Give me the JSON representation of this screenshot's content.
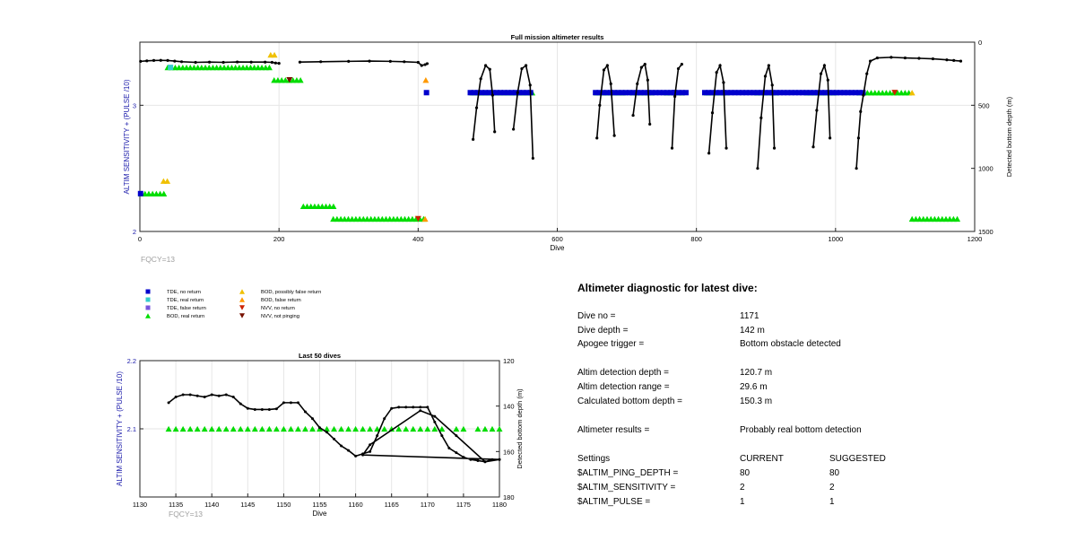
{
  "chart_data": [
    {
      "type": "scatter",
      "title": "Full mission altimeter results",
      "xlabel": "Dive",
      "ylabel_left": "ALTIM SENSITIVITY + (PULSE /10)",
      "ylabel_right": "Detected bottom depth (m)",
      "xlim": [
        0,
        1200
      ],
      "ylim_left": [
        2,
        3.5
      ],
      "ylim_right": [
        0,
        1500
      ],
      "right_axis_reversed": true,
      "x_ticks": [
        "0",
        "200",
        "400",
        "600",
        "800",
        "1000",
        "1200"
      ],
      "y_left_ticks": [
        "2",
        "3"
      ],
      "y_right_ticks": [
        "0",
        "500",
        "1000",
        "1500"
      ],
      "grid": true,
      "annotation": "FQCY=13",
      "legend": [
        {
          "label": "TDE, no return",
          "marker": "square",
          "color": "#0000cc"
        },
        {
          "label": "TDE, real return",
          "marker": "square",
          "color": "#33cccc"
        },
        {
          "label": "TDE, false return",
          "marker": "square",
          "color": "#7755dd"
        },
        {
          "label": "BOD, real return",
          "marker": "triangle-up",
          "color": "#00dd00"
        },
        {
          "label": "BOD, possibly false return",
          "marker": "triangle-up",
          "color": "#f0c000"
        },
        {
          "label": "BOD, false return",
          "marker": "triangle-up",
          "color": "#ff9900"
        },
        {
          "label": "NVV, no return",
          "marker": "triangle-down",
          "color": "#cc2200"
        },
        {
          "label": "NVV, not pinging",
          "marker": "triangle-down",
          "color": "#771100"
        }
      ],
      "status_segments": [
        {
          "series": "BOD, real return",
          "x_start": 40,
          "x_end": 190,
          "y": 3.3
        },
        {
          "series": "BOD, real return",
          "x_start": 193,
          "x_end": 233,
          "y": 3.2
        },
        {
          "series": "BOD, real return",
          "x_start": 478,
          "x_end": 545,
          "y": 3.1
        },
        {
          "series": "BOD, real return",
          "x_start": 537,
          "x_end": 568,
          "y": 3.1
        },
        {
          "series": "BOD, real return",
          "x_start": 657,
          "x_end": 695,
          "y": 3.1
        },
        {
          "series": "BOD, real return",
          "x_start": 708,
          "x_end": 740,
          "y": 3.1
        },
        {
          "series": "BOD, real return",
          "x_start": 757,
          "x_end": 780,
          "y": 3.1
        },
        {
          "series": "BOD, real return",
          "x_start": 815,
          "x_end": 845,
          "y": 3.1
        },
        {
          "series": "BOD, real return",
          "x_start": 887,
          "x_end": 915,
          "y": 3.1
        },
        {
          "series": "BOD, real return",
          "x_start": 960,
          "x_end": 1000,
          "y": 3.1
        },
        {
          "series": "BOD, real return",
          "x_start": 1035,
          "x_end": 1110,
          "y": 3.1
        },
        {
          "series": "BOD, real return",
          "x_start": 2,
          "x_end": 38,
          "y": 2.3
        },
        {
          "series": "BOD, real return",
          "x_start": 235,
          "x_end": 280,
          "y": 2.2
        },
        {
          "series": "BOD, real return",
          "x_start": 278,
          "x_end": 412,
          "y": 2.1
        },
        {
          "series": "BOD, real return",
          "x_start": 1110,
          "x_end": 1180,
          "y": 2.1
        },
        {
          "series": "BOD, possibly false return",
          "x_start": 188,
          "x_end": 196,
          "y": 3.4
        },
        {
          "series": "BOD, possibly false return",
          "x_start": 34,
          "x_end": 40,
          "y": 2.4
        },
        {
          "series": "TDE, no return",
          "x_start": 475,
          "x_end": 565,
          "y": 3.1
        },
        {
          "series": "TDE, no return",
          "x_start": 655,
          "x_end": 790,
          "y": 3.1
        },
        {
          "series": "TDE, no return",
          "x_start": 812,
          "x_end": 1040,
          "y": 3.1
        }
      ],
      "status_points": [
        {
          "series": "TDE, no return",
          "x": 412,
          "y": 3.1
        },
        {
          "series": "TDE, no return",
          "x": 768,
          "y": 3.1
        },
        {
          "series": "TDE, no return",
          "x": 1,
          "y": 2.3
        },
        {
          "series": "TDE, real return",
          "x": 44,
          "y": 3.3
        },
        {
          "series": "BOD, false return",
          "x": 411,
          "y": 3.2
        },
        {
          "series": "BOD, false return",
          "x": 410,
          "y": 2.1
        },
        {
          "series": "BOD, possibly false return",
          "x": 1110,
          "y": 3.1
        },
        {
          "series": "NVV, no return",
          "x": 400,
          "y": 2.1
        },
        {
          "series": "NVV, no return",
          "x": 1085,
          "y": 3.1
        },
        {
          "series": "NVV, not pinging",
          "x": 215,
          "y": 3.2
        }
      ],
      "depth_series": [
        {
          "x": [
            1,
            10,
            20,
            30,
            40,
            50,
            60,
            80,
            100,
            120,
            140,
            160,
            180,
            190,
            195,
            200
          ],
          "y": [
            152,
            148,
            145,
            144,
            145,
            150,
            155,
            160,
            158,
            160,
            157,
            158,
            158,
            160,
            165,
            168
          ]
        },
        {
          "x": [
            230,
            260,
            300,
            330,
            360,
            380,
            400,
            405,
            410,
            413
          ],
          "y": [
            158,
            155,
            152,
            150,
            152,
            155,
            160,
            185,
            178,
            170
          ]
        },
        {
          "x": [
            479,
            484,
            490,
            497,
            503,
            507,
            510
          ],
          "y": [
            770,
            520,
            290,
            185,
            215,
            420,
            710
          ]
        },
        {
          "x": [
            537,
            543,
            549,
            555,
            561,
            565
          ],
          "y": [
            690,
            400,
            210,
            185,
            340,
            920
          ]
        },
        {
          "x": [
            657,
            661,
            667,
            672,
            677,
            682
          ],
          "y": [
            760,
            500,
            220,
            185,
            330,
            740
          ]
        },
        {
          "x": [
            709,
            715,
            721,
            726,
            730,
            733
          ],
          "y": [
            580,
            330,
            200,
            175,
            300,
            650
          ]
        },
        {
          "x": [
            765,
            769,
            774,
            779
          ],
          "y": [
            840,
            430,
            210,
            175
          ]
        },
        {
          "x": [
            818,
            823,
            829,
            834,
            839,
            843
          ],
          "y": [
            880,
            560,
            240,
            185,
            320,
            840
          ]
        },
        {
          "x": [
            888,
            893,
            899,
            904,
            909,
            912
          ],
          "y": [
            1000,
            600,
            270,
            185,
            340,
            840
          ]
        },
        {
          "x": [
            968,
            973,
            979,
            984,
            989,
            992
          ],
          "y": [
            830,
            540,
            250,
            185,
            300,
            760
          ]
        },
        {
          "x": [
            1030,
            1033,
            1036,
            1040,
            1045,
            1050,
            1060,
            1080,
            1100,
            1120,
            1140,
            1160,
            1170,
            1180
          ],
          "y": [
            1000,
            760,
            550,
            420,
            250,
            150,
            125,
            120,
            125,
            128,
            132,
            140,
            145,
            150
          ]
        }
      ]
    },
    {
      "type": "scatter",
      "title": "Last 50 dives",
      "xlabel": "Dive",
      "ylabel_left": "ALTIM SENSITIVITY + (PULSE /10)",
      "ylabel_right": "Detected bottom depth (m)",
      "xlim": [
        1130,
        1180
      ],
      "ylim_left": [
        2,
        2.2
      ],
      "ylim_right": [
        120,
        180
      ],
      "right_axis_reversed": true,
      "x_ticks": [
        "1130",
        "1135",
        "1140",
        "1145",
        "1150",
        "1155",
        "1160",
        "1165",
        "1170",
        "1175",
        "1180"
      ],
      "y_left_ticks": [
        "2.1",
        "2.2"
      ],
      "y_right_ticks": [
        "120",
        "140",
        "160",
        "180"
      ],
      "grid": true,
      "annotation": "FQCY=13",
      "bod_real_return": {
        "value": 2.1,
        "dives": [
          1134,
          1135,
          1136,
          1137,
          1138,
          1139,
          1140,
          1141,
          1142,
          1143,
          1144,
          1145,
          1146,
          1147,
          1148,
          1149,
          1150,
          1151,
          1152,
          1153,
          1154,
          1155,
          1156,
          1157,
          1158,
          1159,
          1160,
          1161,
          1162,
          1163,
          1164,
          1165,
          1166,
          1167,
          1168,
          1169,
          1170,
          1171,
          1172,
          1174,
          1175,
          1177,
          1178,
          1179,
          1180
        ]
      },
      "depth_series": {
        "x": [
          1134,
          1135,
          1136,
          1137,
          1138,
          1139,
          1140,
          1141,
          1142,
          1143,
          1144,
          1145,
          1146,
          1147,
          1148,
          1149,
          1150,
          1151,
          1152,
          1153,
          1154,
          1155,
          1156,
          1157,
          1158,
          1159,
          1160,
          1161,
          1162,
          1163,
          1164,
          1165,
          1166,
          1167,
          1168,
          1169,
          1170,
          1171,
          1172,
          1173,
          1174,
          1175,
          1176,
          1177,
          1178,
          1179,
          1180,
          1161,
          1162,
          1169,
          1171,
          1174,
          1178,
          1180
        ],
        "y": [
          138.5,
          136,
          135,
          135,
          135.5,
          136,
          135,
          135.5,
          135,
          136,
          139,
          141,
          141.5,
          141.5,
          141.5,
          141.2,
          138.5,
          138.5,
          138.5,
          142.5,
          145.5,
          149.5,
          151.5,
          154.5,
          157.5,
          159.5,
          162,
          161,
          160,
          153,
          145.5,
          141,
          140.5,
          140.5,
          140.5,
          140.5,
          140.5,
          147,
          153,
          158.5,
          160.5,
          162.5,
          163.5,
          164,
          164.5,
          163.5,
          163.5,
          161.5,
          157,
          142,
          144.5,
          153,
          164.5,
          163.5
        ]
      }
    }
  ],
  "diagnostic": {
    "title": "Altimeter diagnostic for latest dive:",
    "rows": [
      {
        "label": "Dive no =",
        "value": "1171",
        "value2": ""
      },
      {
        "label": "Dive depth =",
        "value": "142 m",
        "value2": ""
      },
      {
        "label": "Apogee trigger =",
        "value": "Bottom obstacle detected",
        "value2": ""
      },
      {
        "label": "Altim detection depth =",
        "value": "120.7 m",
        "value2": ""
      },
      {
        "label": "Altim detection range =",
        "value": "29.6 m",
        "value2": ""
      },
      {
        "label": "Calculated bottom depth =",
        "value": "150.3 m",
        "value2": ""
      },
      {
        "label": "Altimeter results =",
        "value": "Probably real bottom detection",
        "value2": ""
      },
      {
        "label": "Settings",
        "value": "CURRENT",
        "value2": "SUGGESTED"
      },
      {
        "label": "$ALTIM_PING_DEPTH =",
        "value": "80",
        "value2": "80"
      },
      {
        "label": "$ALTIM_SENSITIVITY =",
        "value": "2",
        "value2": "2"
      },
      {
        "label": "$ALTIM_PULSE =",
        "value": "1",
        "value2": "1"
      }
    ]
  }
}
